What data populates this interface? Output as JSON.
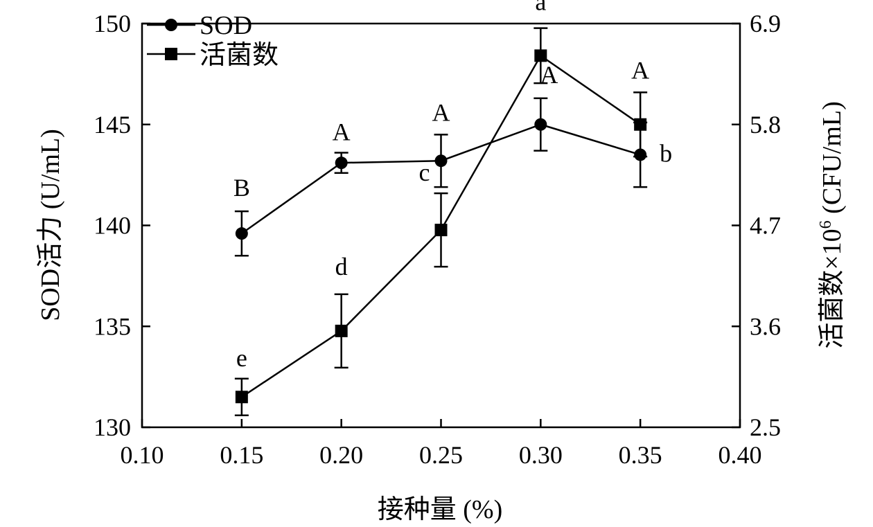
{
  "chart_data": {
    "type": "line",
    "xlabel": "接种量 (%)",
    "ylabel_left": "SOD活力 (U/mL)",
    "ylabel_right_main": "活菌数×10",
    "ylabel_right_sup": "6",
    "ylabel_right_unit": " (CFU/mL)",
    "xlim": [
      0.1,
      0.4
    ],
    "x_ticks": [
      "0.10",
      "0.15",
      "0.20",
      "0.25",
      "0.30",
      "0.35",
      "0.40"
    ],
    "ylim_left": [
      130,
      150
    ],
    "y_left_ticks": [
      "130",
      "135",
      "140",
      "145",
      "150"
    ],
    "ylim_right": [
      2.5,
      6.9
    ],
    "y_right_ticks": [
      "2.5",
      "3.6",
      "4.7",
      "5.8",
      "6.9"
    ],
    "grid": false,
    "legend_position": "top-left",
    "series": [
      {
        "name": "SOD",
        "axis": "left",
        "marker": "circle",
        "x": [
          0.15,
          0.2,
          0.25,
          0.3,
          0.35
        ],
        "y": [
          139.6,
          143.1,
          143.2,
          145.0,
          143.5
        ],
        "error": [
          1.1,
          0.5,
          1.3,
          1.3,
          1.6
        ],
        "labels": [
          "B",
          "A",
          "A",
          "A",
          "b"
        ]
      },
      {
        "name": "活菌数",
        "axis": "right",
        "marker": "square",
        "x": [
          0.15,
          0.2,
          0.25,
          0.3,
          0.35
        ],
        "y": [
          2.83,
          3.55,
          4.65,
          6.55,
          5.8
        ],
        "error": [
          0.2,
          0.4,
          0.4,
          0.3,
          0.35
        ],
        "labels": [
          "e",
          "d",
          "c",
          "a",
          "A"
        ]
      }
    ]
  }
}
